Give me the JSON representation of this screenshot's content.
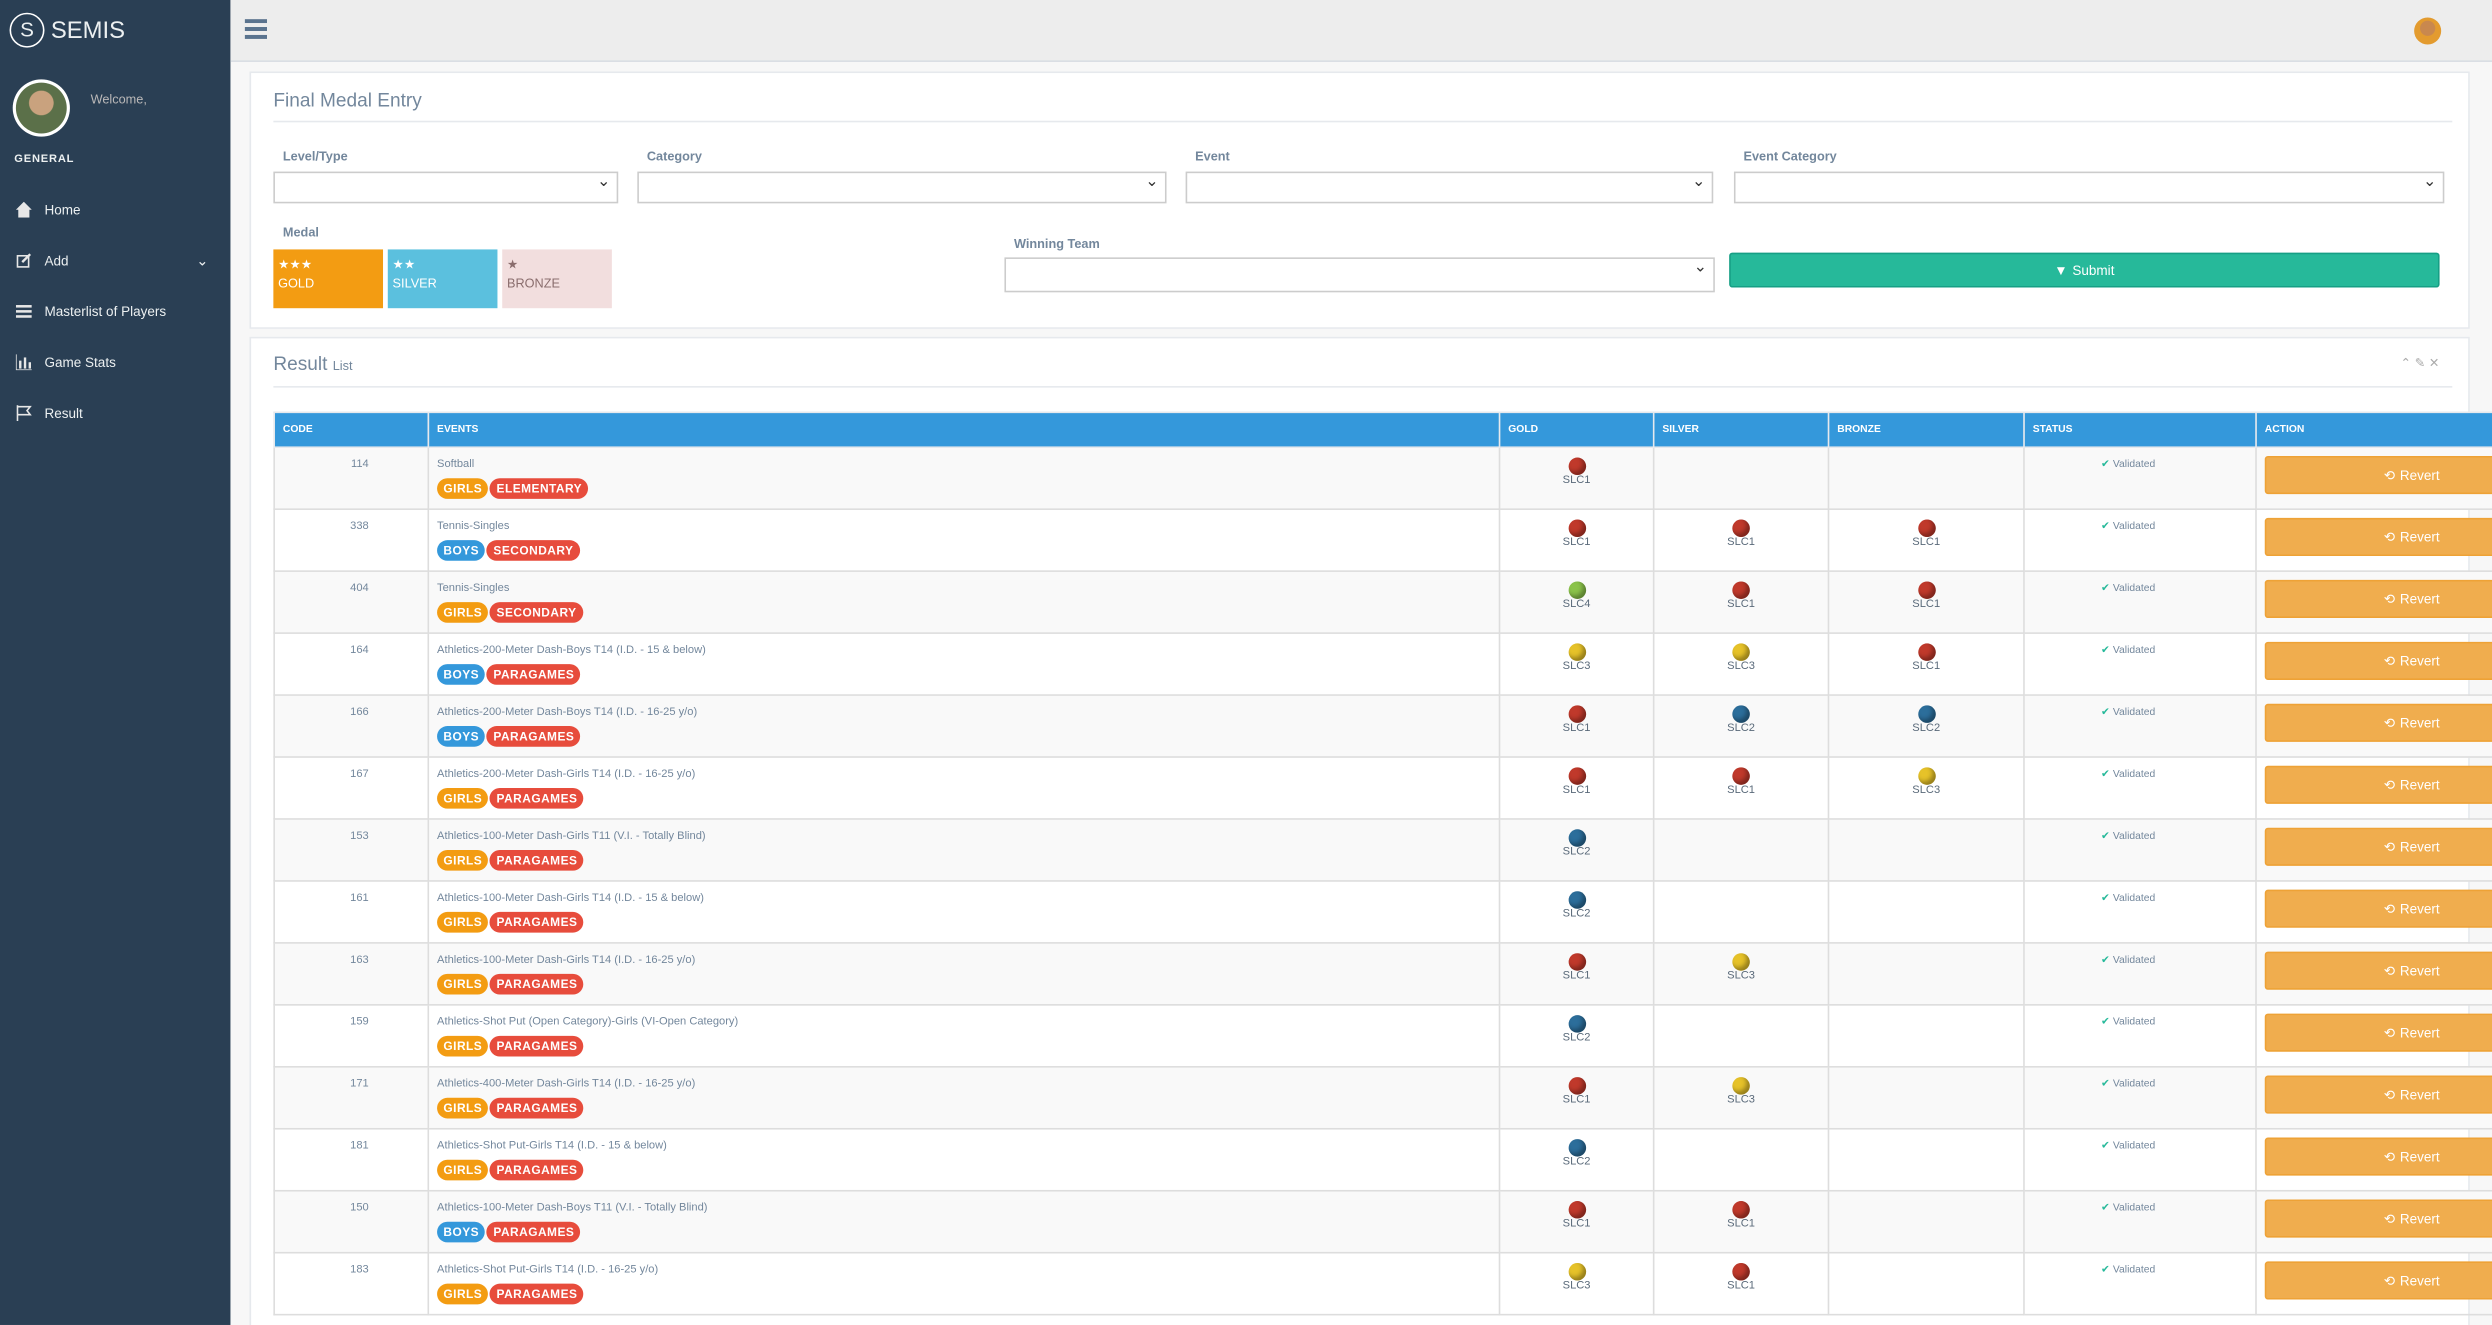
{
  "sidebar": {
    "brand": "SEMIS",
    "welcome": "Welcome,",
    "section": "GENERAL",
    "menu": [
      "Home",
      "Add",
      "Masterlist of Players",
      "Game Stats",
      "Result"
    ]
  },
  "form": {
    "title": "Final Medal Entry",
    "fields": [
      "Level/Type",
      "Category",
      "Event",
      "Event Category"
    ],
    "medal_label": "Medal",
    "medals": [
      {
        "stars": "★★★",
        "name": "GOLD",
        "color": "#f39c12"
      },
      {
        "stars": "★★",
        "name": "SILVER",
        "color": "#5bc0de"
      },
      {
        "stars": "★",
        "name": "BRONZE",
        "color": "#f2dede"
      }
    ],
    "team_label": "Winning Team",
    "submit": "Submit"
  },
  "result": {
    "title": "Result",
    "subtitle": "List",
    "headers": [
      "CODE",
      "EVENTS",
      "GOLD",
      "SILVER",
      "BRONZE",
      "STATUS",
      "ACTION"
    ],
    "rows": [
      {
        "code": "114",
        "event": "Softball",
        "gender": {
          "text": "GIRLS",
          "color": "#f39c12"
        },
        "level": "ELEMENTARY",
        "gold": {
          "team": "SLC1",
          "color": "#c0392b"
        },
        "silver": null,
        "bronze": null,
        "status": "Validated",
        "action": "Revert"
      },
      {
        "code": "338",
        "event": "Tennis-Singles",
        "gender": {
          "text": "BOYS",
          "color": "#3498db"
        },
        "level": "SECONDARY",
        "gold": {
          "team": "SLC1",
          "color": "#c0392b"
        },
        "silver": {
          "team": "SLC1",
          "color": "#c0392b"
        },
        "bronze": {
          "team": "SLC1",
          "color": "#c0392b"
        },
        "status": "Validated",
        "action": "Revert"
      },
      {
        "code": "404",
        "event": "Tennis-Singles",
        "gender": {
          "text": "GIRLS",
          "color": "#f39c12"
        },
        "level": "SECONDARY",
        "gold": {
          "team": "SLC4",
          "color": "#8bc34a"
        },
        "silver": {
          "team": "SLC1",
          "color": "#c0392b"
        },
        "bronze": {
          "team": "SLC1",
          "color": "#c0392b"
        },
        "status": "Validated",
        "action": "Revert"
      },
      {
        "code": "164",
        "event": "Athletics-200-Meter Dash-Boys T14 (I.D. - 15 & below)",
        "gender": {
          "text": "BOYS",
          "color": "#3498db"
        },
        "level": "PARAGAMES",
        "gold": {
          "team": "SLC3",
          "color": "#e6c229"
        },
        "silver": {
          "team": "SLC3",
          "color": "#e6c229"
        },
        "bronze": {
          "team": "SLC1",
          "color": "#c0392b"
        },
        "status": "Validated",
        "action": "Revert"
      },
      {
        "code": "166",
        "event": "Athletics-200-Meter Dash-Boys T14 (I.D. - 16-25 y/o)",
        "gender": {
          "text": "BOYS",
          "color": "#3498db"
        },
        "level": "PARAGAMES",
        "gold": {
          "team": "SLC1",
          "color": "#c0392b"
        },
        "silver": {
          "team": "SLC2",
          "color": "#2c6e9b"
        },
        "bronze": {
          "team": "SLC2",
          "color": "#2c6e9b"
        },
        "status": "Validated",
        "action": "Revert"
      },
      {
        "code": "167",
        "event": "Athletics-200-Meter Dash-Girls T14 (I.D. - 16-25 y/o)",
        "gender": {
          "text": "GIRLS",
          "color": "#f39c12"
        },
        "level": "PARAGAMES",
        "gold": {
          "team": "SLC1",
          "color": "#c0392b"
        },
        "silver": {
          "team": "SLC1",
          "color": "#c0392b"
        },
        "bronze": {
          "team": "SLC3",
          "color": "#e6c229"
        },
        "status": "Validated",
        "action": "Revert"
      },
      {
        "code": "153",
        "event": "Athletics-100-Meter Dash-Girls T11 (V.I. - Totally Blind)",
        "gender": {
          "text": "GIRLS",
          "color": "#f39c12"
        },
        "level": "PARAGAMES",
        "gold": {
          "team": "SLC2",
          "color": "#2c6e9b"
        },
        "silver": null,
        "bronze": null,
        "status": "Validated",
        "action": "Revert"
      },
      {
        "code": "161",
        "event": "Athletics-100-Meter Dash-Girls T14 (I.D. - 15 & below)",
        "gender": {
          "text": "GIRLS",
          "color": "#f39c12"
        },
        "level": "PARAGAMES",
        "gold": {
          "team": "SLC2",
          "color": "#2c6e9b"
        },
        "silver": null,
        "bronze": null,
        "status": "Validated",
        "action": "Revert"
      },
      {
        "code": "163",
        "event": "Athletics-100-Meter Dash-Girls T14 (I.D. - 16-25 y/o)",
        "gender": {
          "text": "GIRLS",
          "color": "#f39c12"
        },
        "level": "PARAGAMES",
        "gold": {
          "team": "SLC1",
          "color": "#c0392b"
        },
        "silver": {
          "team": "SLC3",
          "color": "#e6c229"
        },
        "bronze": null,
        "status": "Validated",
        "action": "Revert"
      },
      {
        "code": "159",
        "event": "Athletics-Shot Put (Open Category)-Girls (VI-Open Category)",
        "gender": {
          "text": "GIRLS",
          "color": "#f39c12"
        },
        "level": "PARAGAMES",
        "gold": {
          "team": "SLC2",
          "color": "#2c6e9b"
        },
        "silver": null,
        "bronze": null,
        "status": "Validated",
        "action": "Revert"
      },
      {
        "code": "171",
        "event": "Athletics-400-Meter Dash-Girls T14 (I.D. - 16-25 y/o)",
        "gender": {
          "text": "GIRLS",
          "color": "#f39c12"
        },
        "level": "PARAGAMES",
        "gold": {
          "team": "SLC1",
          "color": "#c0392b"
        },
        "silver": {
          "team": "SLC3",
          "color": "#e6c229"
        },
        "bronze": null,
        "status": "Validated",
        "action": "Revert"
      },
      {
        "code": "181",
        "event": "Athletics-Shot Put-Girls T14 (I.D. - 15 & below)",
        "gender": {
          "text": "GIRLS",
          "color": "#f39c12"
        },
        "level": "PARAGAMES",
        "gold": {
          "team": "SLC2",
          "color": "#2c6e9b"
        },
        "silver": null,
        "bronze": null,
        "status": "Validated",
        "action": "Revert"
      },
      {
        "code": "150",
        "event": "Athletics-100-Meter Dash-Boys T11 (V.I. - Totally Blind)",
        "gender": {
          "text": "BOYS",
          "color": "#3498db"
        },
        "level": "PARAGAMES",
        "gold": {
          "team": "SLC1",
          "color": "#c0392b"
        },
        "silver": {
          "team": "SLC1",
          "color": "#c0392b"
        },
        "bronze": null,
        "status": "Validated",
        "action": "Revert"
      },
      {
        "code": "183",
        "event": "Athletics-Shot Put-Girls T14 (I.D. - 16-25 y/o)",
        "gender": {
          "text": "GIRLS",
          "color": "#f39c12"
        },
        "level": "PARAGAMES",
        "gold": {
          "team": "SLC3",
          "color": "#e6c229"
        },
        "silver": {
          "team": "SLC1",
          "color": "#c0392b"
        },
        "bronze": null,
        "status": "Validated",
        "action": "Revert"
      }
    ]
  }
}
